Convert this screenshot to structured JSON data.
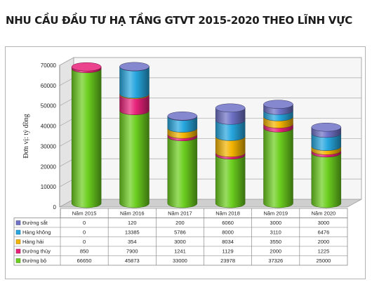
{
  "title": "NHU CẦU ĐẦU TƯ HẠ TẦNG GTVT 2015-2020 THEO LĨNH VỰC",
  "chart_data": {
    "type": "bar",
    "stacked": true,
    "style": "3d-cylinder",
    "ylabel": "Đơn vị: tỷ đồng",
    "ylim": [
      0,
      70000
    ],
    "yticks": [
      0,
      10000,
      20000,
      30000,
      40000,
      50000,
      60000,
      70000
    ],
    "grid": true,
    "categories": [
      "Năm 2015",
      "Năm 2016",
      "Năm 2017",
      "Năm 2018",
      "Năm 2019",
      "Năm 2020"
    ],
    "series": [
      {
        "name": "Đường bộ",
        "color": "#6ccf1f",
        "values": [
          66650,
          45873,
          33000,
          23978,
          37326,
          25000
        ]
      },
      {
        "name": "Đường thủy",
        "color": "#e8227a",
        "values": [
          850,
          7900,
          1241,
          1129,
          2000,
          1225
        ]
      },
      {
        "name": "Hàng hải",
        "color": "#f4b400",
        "values": [
          0,
          354,
          3000,
          8034,
          3550,
          2000
        ]
      },
      {
        "name": "Hàng không",
        "color": "#27a7df",
        "values": [
          0,
          13385,
          5786,
          8000,
          3110,
          6476
        ]
      },
      {
        "name": "Đường sắt",
        "color": "#6f72c7",
        "values": [
          0,
          120,
          200,
          6060,
          3000,
          3000
        ]
      }
    ],
    "table_order": [
      "Đường sắt",
      "Hàng không",
      "Hàng hải",
      "Đường thủy",
      "Đường bộ"
    ],
    "legend": "data-table"
  }
}
